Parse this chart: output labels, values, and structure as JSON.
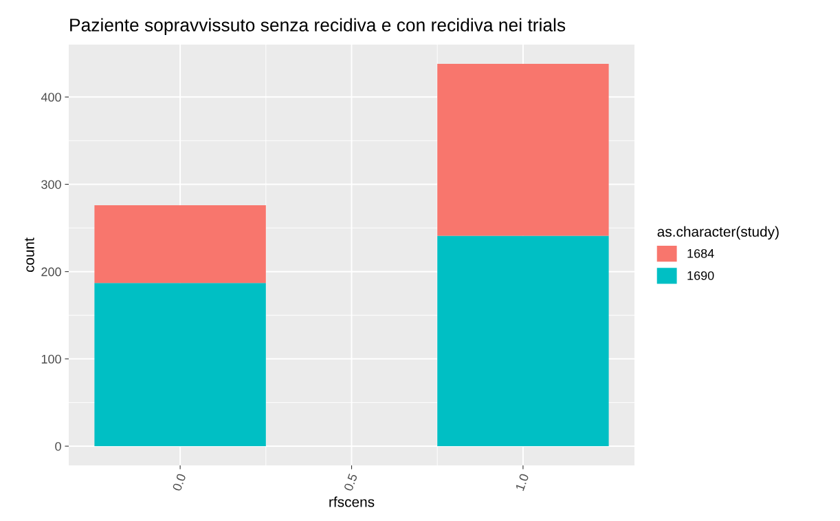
{
  "chart_data": {
    "type": "bar",
    "title": "Paziente sopravvissuto senza recidiva e con recidiva nei trials",
    "xlabel": "rfscens",
    "ylabel": "count",
    "legend_title": "as.character(study)",
    "x": [
      0,
      1
    ],
    "stacked": true,
    "series": [
      {
        "name": "1690",
        "color": "#00bfc4",
        "values": [
          187,
          241
        ]
      },
      {
        "name": "1684",
        "color": "#f8766d",
        "values": [
          89,
          197
        ]
      }
    ],
    "xlim": [
      -0.325,
      1.325
    ],
    "xticks": [
      {
        "value": 0,
        "label": "0.0"
      },
      {
        "value": 0.5,
        "label": "0.5"
      },
      {
        "value": 1,
        "label": "1.0"
      }
    ],
    "ylim": [
      -22,
      460
    ],
    "yticks": [
      0,
      100,
      200,
      300,
      400
    ],
    "grid": true,
    "legend": "right"
  }
}
